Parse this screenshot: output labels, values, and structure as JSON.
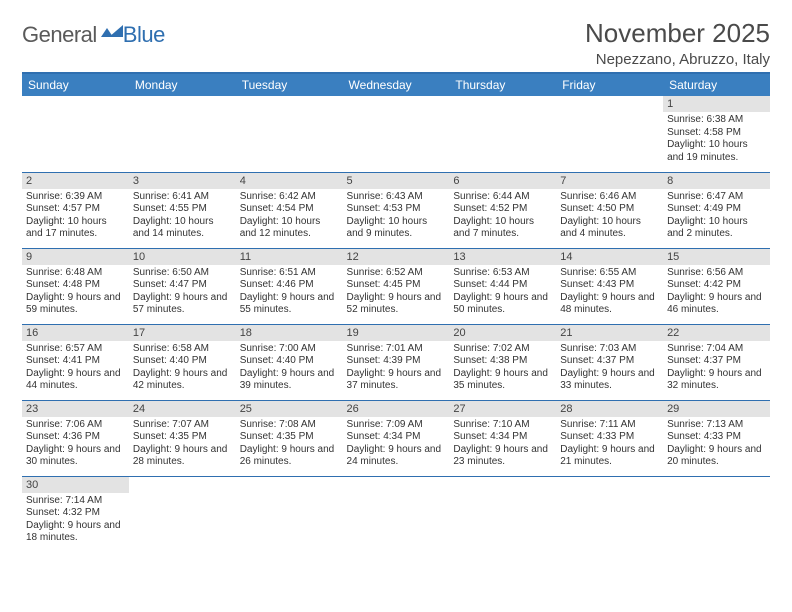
{
  "brand": {
    "text1": "General",
    "text2": "Blue"
  },
  "title": "November 2025",
  "location": "Nepezzano, Abruzzo, Italy",
  "colors": {
    "header_bg": "#3a7fc0",
    "header_text": "#ffffff",
    "rule": "#2f6fb0",
    "daynum_bg": "#e3e3e3",
    "text": "#333333",
    "title_text": "#4a4a4a"
  },
  "weekdays": [
    "Sunday",
    "Monday",
    "Tuesday",
    "Wednesday",
    "Thursday",
    "Friday",
    "Saturday"
  ],
  "weeks": [
    [
      {
        "n": "",
        "sr": "",
        "ss": "",
        "dl": ""
      },
      {
        "n": "",
        "sr": "",
        "ss": "",
        "dl": ""
      },
      {
        "n": "",
        "sr": "",
        "ss": "",
        "dl": ""
      },
      {
        "n": "",
        "sr": "",
        "ss": "",
        "dl": ""
      },
      {
        "n": "",
        "sr": "",
        "ss": "",
        "dl": ""
      },
      {
        "n": "",
        "sr": "",
        "ss": "",
        "dl": ""
      },
      {
        "n": "1",
        "sr": "Sunrise: 6:38 AM",
        "ss": "Sunset: 4:58 PM",
        "dl": "Daylight: 10 hours and 19 minutes."
      }
    ],
    [
      {
        "n": "2",
        "sr": "Sunrise: 6:39 AM",
        "ss": "Sunset: 4:57 PM",
        "dl": "Daylight: 10 hours and 17 minutes."
      },
      {
        "n": "3",
        "sr": "Sunrise: 6:41 AM",
        "ss": "Sunset: 4:55 PM",
        "dl": "Daylight: 10 hours and 14 minutes."
      },
      {
        "n": "4",
        "sr": "Sunrise: 6:42 AM",
        "ss": "Sunset: 4:54 PM",
        "dl": "Daylight: 10 hours and 12 minutes."
      },
      {
        "n": "5",
        "sr": "Sunrise: 6:43 AM",
        "ss": "Sunset: 4:53 PM",
        "dl": "Daylight: 10 hours and 9 minutes."
      },
      {
        "n": "6",
        "sr": "Sunrise: 6:44 AM",
        "ss": "Sunset: 4:52 PM",
        "dl": "Daylight: 10 hours and 7 minutes."
      },
      {
        "n": "7",
        "sr": "Sunrise: 6:46 AM",
        "ss": "Sunset: 4:50 PM",
        "dl": "Daylight: 10 hours and 4 minutes."
      },
      {
        "n": "8",
        "sr": "Sunrise: 6:47 AM",
        "ss": "Sunset: 4:49 PM",
        "dl": "Daylight: 10 hours and 2 minutes."
      }
    ],
    [
      {
        "n": "9",
        "sr": "Sunrise: 6:48 AM",
        "ss": "Sunset: 4:48 PM",
        "dl": "Daylight: 9 hours and 59 minutes."
      },
      {
        "n": "10",
        "sr": "Sunrise: 6:50 AM",
        "ss": "Sunset: 4:47 PM",
        "dl": "Daylight: 9 hours and 57 minutes."
      },
      {
        "n": "11",
        "sr": "Sunrise: 6:51 AM",
        "ss": "Sunset: 4:46 PM",
        "dl": "Daylight: 9 hours and 55 minutes."
      },
      {
        "n": "12",
        "sr": "Sunrise: 6:52 AM",
        "ss": "Sunset: 4:45 PM",
        "dl": "Daylight: 9 hours and 52 minutes."
      },
      {
        "n": "13",
        "sr": "Sunrise: 6:53 AM",
        "ss": "Sunset: 4:44 PM",
        "dl": "Daylight: 9 hours and 50 minutes."
      },
      {
        "n": "14",
        "sr": "Sunrise: 6:55 AM",
        "ss": "Sunset: 4:43 PM",
        "dl": "Daylight: 9 hours and 48 minutes."
      },
      {
        "n": "15",
        "sr": "Sunrise: 6:56 AM",
        "ss": "Sunset: 4:42 PM",
        "dl": "Daylight: 9 hours and 46 minutes."
      }
    ],
    [
      {
        "n": "16",
        "sr": "Sunrise: 6:57 AM",
        "ss": "Sunset: 4:41 PM",
        "dl": "Daylight: 9 hours and 44 minutes."
      },
      {
        "n": "17",
        "sr": "Sunrise: 6:58 AM",
        "ss": "Sunset: 4:40 PM",
        "dl": "Daylight: 9 hours and 42 minutes."
      },
      {
        "n": "18",
        "sr": "Sunrise: 7:00 AM",
        "ss": "Sunset: 4:40 PM",
        "dl": "Daylight: 9 hours and 39 minutes."
      },
      {
        "n": "19",
        "sr": "Sunrise: 7:01 AM",
        "ss": "Sunset: 4:39 PM",
        "dl": "Daylight: 9 hours and 37 minutes."
      },
      {
        "n": "20",
        "sr": "Sunrise: 7:02 AM",
        "ss": "Sunset: 4:38 PM",
        "dl": "Daylight: 9 hours and 35 minutes."
      },
      {
        "n": "21",
        "sr": "Sunrise: 7:03 AM",
        "ss": "Sunset: 4:37 PM",
        "dl": "Daylight: 9 hours and 33 minutes."
      },
      {
        "n": "22",
        "sr": "Sunrise: 7:04 AM",
        "ss": "Sunset: 4:37 PM",
        "dl": "Daylight: 9 hours and 32 minutes."
      }
    ],
    [
      {
        "n": "23",
        "sr": "Sunrise: 7:06 AM",
        "ss": "Sunset: 4:36 PM",
        "dl": "Daylight: 9 hours and 30 minutes."
      },
      {
        "n": "24",
        "sr": "Sunrise: 7:07 AM",
        "ss": "Sunset: 4:35 PM",
        "dl": "Daylight: 9 hours and 28 minutes."
      },
      {
        "n": "25",
        "sr": "Sunrise: 7:08 AM",
        "ss": "Sunset: 4:35 PM",
        "dl": "Daylight: 9 hours and 26 minutes."
      },
      {
        "n": "26",
        "sr": "Sunrise: 7:09 AM",
        "ss": "Sunset: 4:34 PM",
        "dl": "Daylight: 9 hours and 24 minutes."
      },
      {
        "n": "27",
        "sr": "Sunrise: 7:10 AM",
        "ss": "Sunset: 4:34 PM",
        "dl": "Daylight: 9 hours and 23 minutes."
      },
      {
        "n": "28",
        "sr": "Sunrise: 7:11 AM",
        "ss": "Sunset: 4:33 PM",
        "dl": "Daylight: 9 hours and 21 minutes."
      },
      {
        "n": "29",
        "sr": "Sunrise: 7:13 AM",
        "ss": "Sunset: 4:33 PM",
        "dl": "Daylight: 9 hours and 20 minutes."
      }
    ],
    [
      {
        "n": "30",
        "sr": "Sunrise: 7:14 AM",
        "ss": "Sunset: 4:32 PM",
        "dl": "Daylight: 9 hours and 18 minutes."
      },
      {
        "n": "",
        "sr": "",
        "ss": "",
        "dl": ""
      },
      {
        "n": "",
        "sr": "",
        "ss": "",
        "dl": ""
      },
      {
        "n": "",
        "sr": "",
        "ss": "",
        "dl": ""
      },
      {
        "n": "",
        "sr": "",
        "ss": "",
        "dl": ""
      },
      {
        "n": "",
        "sr": "",
        "ss": "",
        "dl": ""
      },
      {
        "n": "",
        "sr": "",
        "ss": "",
        "dl": ""
      }
    ]
  ]
}
